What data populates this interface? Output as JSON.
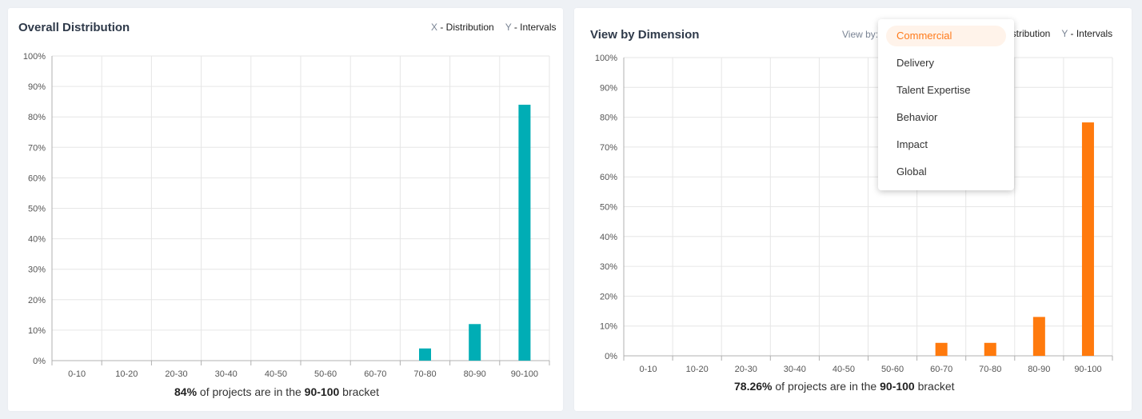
{
  "left_panel": {
    "title": "Overall Distribution",
    "legend_x_key": "X",
    "legend_x_text": " - Distribution",
    "legend_y_key": "Y",
    "legend_y_text": " - Intervals",
    "footer_pct": "84%",
    "footer_mid": " of projects are in the ",
    "footer_bracket": "90-100",
    "footer_end": " bracket"
  },
  "right_panel": {
    "title": "View by Dimension",
    "view_by_label": "View by:",
    "legend_x_partial": "istribution",
    "legend_y_key": "Y",
    "legend_y_text": " - Intervals",
    "footer_pct": "78.26%",
    "footer_mid": " of projects are in the ",
    "footer_bracket": "90-100",
    "footer_end": " bracket"
  },
  "dropdown": {
    "selected": "Commercial",
    "options": [
      "Commercial",
      "Delivery",
      "Talent Expertise",
      "Behavior",
      "Impact",
      "Global"
    ]
  },
  "colors": {
    "left_bar": "#00adb5",
    "right_bar": "#ff7a0d",
    "accent": "#ff7a1a",
    "grid": "#e6e6e6",
    "axis": "#b0b0b0"
  },
  "chart_data": [
    {
      "type": "bar",
      "title": "Overall Distribution",
      "categories": [
        "0-10",
        "10-20",
        "20-30",
        "30-40",
        "40-50",
        "50-60",
        "60-70",
        "70-80",
        "80-90",
        "90-100"
      ],
      "values": [
        0,
        0,
        0,
        0,
        0,
        0,
        0,
        4,
        12,
        84
      ],
      "ylim": [
        0,
        100
      ],
      "yticks": [
        "0%",
        "10%",
        "20%",
        "30%",
        "40%",
        "50%",
        "60%",
        "70%",
        "80%",
        "90%",
        "100%"
      ],
      "grid": true,
      "legend": "top-right"
    },
    {
      "type": "bar",
      "title": "View by Dimension",
      "categories": [
        "0-10",
        "10-20",
        "20-30",
        "30-40",
        "40-50",
        "50-60",
        "60-70",
        "70-80",
        "80-90",
        "90-100"
      ],
      "values": [
        0,
        0,
        0,
        0,
        0,
        0,
        4.35,
        4.35,
        13.04,
        78.26
      ],
      "ylim": [
        0,
        100
      ],
      "yticks": [
        "0%",
        "10%",
        "20%",
        "30%",
        "40%",
        "50%",
        "60%",
        "70%",
        "80%",
        "90%",
        "100%"
      ],
      "grid": true,
      "legend": "top-right"
    }
  ]
}
